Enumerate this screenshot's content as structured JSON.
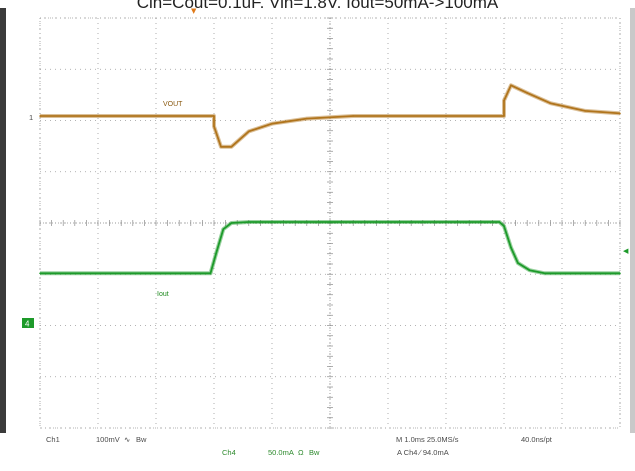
{
  "title": "Cin=Cout=0.1uF, Vin=1.8V, Iout=50mA->100mA",
  "chart_data": {
    "type": "line",
    "time_unit": "ms",
    "xlim": [
      -0.5,
      4.5
    ],
    "x_divisions": 10,
    "y_divisions": 8,
    "series": [
      {
        "name": "VOUT",
        "channel": "Ch1",
        "unit": "mV",
        "color": "#b0741c",
        "x": [
          -0.5,
          1.0,
          1.0,
          1.06,
          1.15,
          1.3,
          1.5,
          1.8,
          2.2,
          3.0,
          3.5,
          3.5,
          3.56,
          3.7,
          3.9,
          4.2,
          4.5
        ],
        "y": [
          0,
          0,
          -20,
          -60,
          -60,
          -30,
          -15,
          -5,
          0,
          0,
          0,
          30,
          60,
          45,
          25,
          10,
          5
        ]
      },
      {
        "name": "Iout",
        "channel": "Ch4",
        "unit": "mA",
        "color": "#1d9a2a",
        "x": [
          -0.5,
          0.97,
          1.02,
          1.08,
          1.15,
          1.3,
          3.46,
          3.5,
          3.56,
          3.62,
          3.72,
          3.85,
          4.5
        ],
        "y": [
          50,
          50,
          70,
          93,
          99,
          100,
          100,
          96,
          75,
          60,
          53,
          50,
          50
        ]
      }
    ]
  },
  "markers": {
    "ch1_ground": "1",
    "ch4_ground": "4",
    "trigger_arrow": "▼",
    "trigger_level": "◀",
    "vout_label": "VOUT",
    "iout_label": "Iout"
  },
  "readout": {
    "ch1": "Ch1",
    "ch1_scale": "100mV",
    "ch1_bw": "Bw",
    "ch4": "Ch4",
    "ch4_scale": "50.0mA",
    "ch4_imp": "Ω",
    "ch4_bw": "Bw",
    "timebase": "M 1.0ms 25.0MS/s",
    "points": "40.0ns/pt",
    "trigger": "A  Ch4  ∕  94.0mA"
  }
}
